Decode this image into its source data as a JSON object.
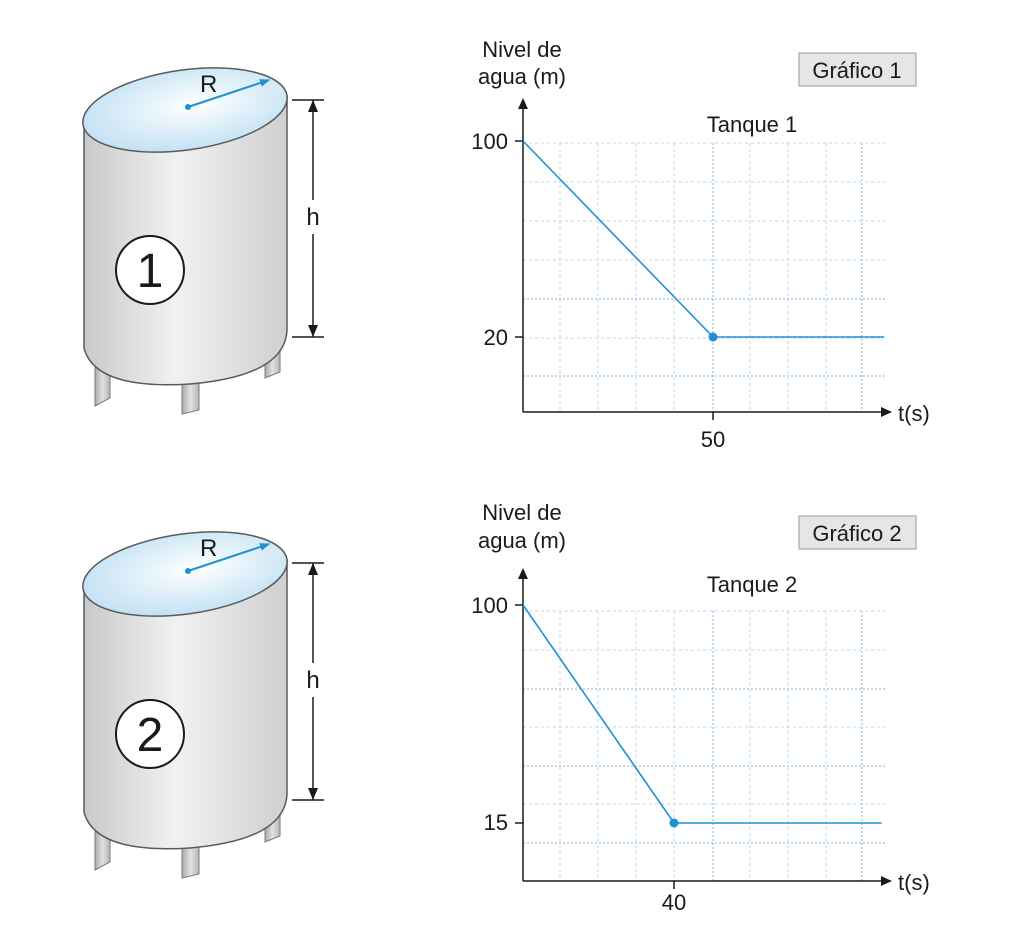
{
  "tanks": [
    {
      "number": "1",
      "radius_label": "R",
      "height_label": "h"
    },
    {
      "number": "2",
      "radius_label": "R",
      "height_label": "h"
    }
  ],
  "colors": {
    "line": "#1f8fd6",
    "grid": "#bfd6ea",
    "grid_dotted": "#7fb6e0",
    "axis": "#1a1a1a",
    "tank_body": "#d9d9d9",
    "water": "#cfe8f6",
    "box_fill": "#e6e6e6"
  },
  "chart_data": [
    {
      "type": "line",
      "box_label": "Gráfico 1",
      "title": "Tanque 1",
      "ylabel": [
        "Nivel de",
        "agua (m)"
      ],
      "xlabel": "t(s)",
      "x_ticks": [
        "50"
      ],
      "y_ticks": [
        "100",
        "20"
      ],
      "series": [
        {
          "points": [
            [
              0,
              100
            ],
            [
              50,
              20
            ],
            [
              95,
              20
            ]
          ],
          "marker_at": [
            50,
            20
          ]
        }
      ],
      "xlim": [
        0,
        95
      ],
      "ylim": [
        -20,
        100
      ]
    },
    {
      "type": "line",
      "box_label": "Gráfico 2",
      "title": "Tanque 2",
      "ylabel": [
        "Nivel de",
        "agua (m)"
      ],
      "xlabel": "t(s)",
      "x_ticks": [
        "40"
      ],
      "y_ticks": [
        "100",
        "15"
      ],
      "series": [
        {
          "points": [
            [
              0,
              100
            ],
            [
              40,
              15
            ],
            [
              95,
              15
            ]
          ],
          "marker_at": [
            40,
            15
          ]
        }
      ],
      "xlim": [
        0,
        95
      ],
      "ylim": [
        -15,
        100
      ]
    }
  ]
}
